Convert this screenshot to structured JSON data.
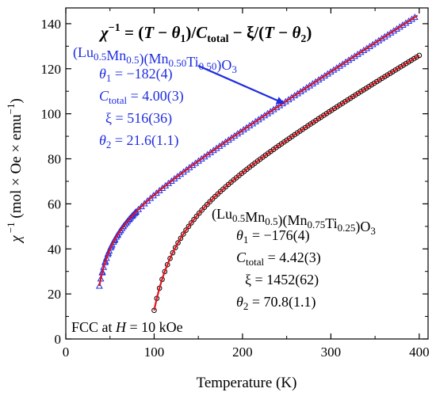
{
  "chart_data": {
    "type": "scatter",
    "title": "χ⁻¹ = (T − θ₁)/C_total − ξ/(T − θ₂)",
    "xlabel": "Temperature (K)",
    "ylabel": "χ⁻¹ (mol × Oe × emu⁻¹)",
    "xlim": [
      0,
      410
    ],
    "ylim": [
      0,
      147
    ],
    "xticks": [
      0,
      100,
      200,
      300,
      400
    ],
    "yticks": [
      0,
      20,
      40,
      60,
      80,
      100,
      120,
      140
    ],
    "grid": false,
    "legend": "none",
    "annotation_bottom_left": "FCC at H = 10 kOe",
    "colors": {
      "blue_series": "#1f2de0",
      "fit_line": "#e0141e",
      "black_series": "#000000"
    },
    "series": [
      {
        "name": "(Lu0.5Mn0.5)(Mn0.50Ti0.50)O3",
        "marker": "triangle-open",
        "color": "#1f2de0",
        "x_range": [
          38,
          398
        ],
        "params": {
          "theta1": -182,
          "C_total": 4.0,
          "xi": 516,
          "theta2": 21.6
        },
        "annotation": {
          "name_parts": [
            [
              "(Lu",
              ""
            ],
            [
              "0.5",
              "sub"
            ],
            [
              "Mn",
              ""
            ],
            [
              "0.5",
              "sub"
            ],
            [
              ")(Mn",
              ""
            ],
            [
              "0.50",
              "sub"
            ],
            [
              "Ti",
              ""
            ],
            [
              "0.50",
              "sub"
            ],
            [
              ")O",
              ""
            ],
            [
              "3",
              "sub"
            ]
          ],
          "theta1": "−182(4)",
          "C_total": "4.00(3)",
          "xi": "516(36)",
          "theta2": "21.6(1.1)"
        }
      },
      {
        "name": "(Lu0.5Mn0.5)(Mn0.75Ti0.25)O3",
        "marker": "circle-open",
        "color": "#000000",
        "x_range": [
          100,
          400
        ],
        "params": {
          "theta1": -176,
          "C_total": 4.42,
          "xi": 1452,
          "theta2": 70.8
        },
        "annotation": {
          "name_parts": [
            [
              "(Lu",
              ""
            ],
            [
              "0.5",
              "sub"
            ],
            [
              "Mn",
              ""
            ],
            [
              "0.5",
              "sub"
            ],
            [
              ")(Mn",
              ""
            ],
            [
              "0.75",
              "sub"
            ],
            [
              "Ti",
              ""
            ],
            [
              "0.25",
              "sub"
            ],
            [
              ")O",
              ""
            ],
            [
              "3",
              "sub"
            ]
          ],
          "theta1": "−176(4)",
          "C_total": "4.42(3)",
          "xi": "1452(62)",
          "theta2": "70.8(1.1)"
        }
      }
    ]
  }
}
